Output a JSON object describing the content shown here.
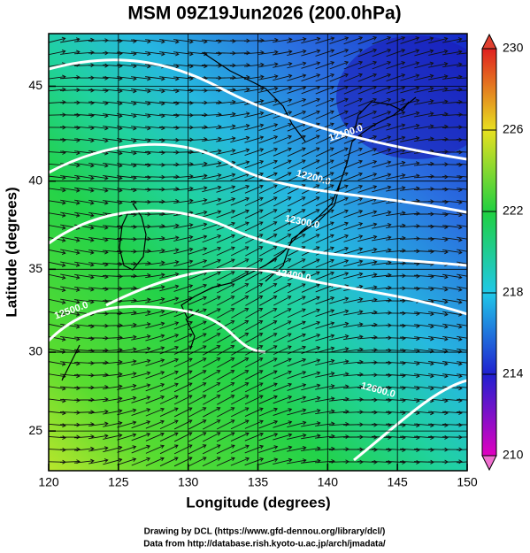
{
  "chart_data": {
    "type": "map",
    "projection": "mercator",
    "title": "MSM 09Z19Jun2026 (200.0hPa)",
    "x_label": "Longitude (degrees)",
    "y_label": "Latitude  (degrees)",
    "xlim": [
      120,
      150
    ],
    "ylim": [
      22.4,
      47.6
    ],
    "xticks": [
      120,
      125,
      130,
      135,
      140,
      145,
      150
    ],
    "yticks": [
      25,
      30,
      35,
      40,
      45
    ],
    "grid": true,
    "contour_levels": [
      12100,
      12200,
      12300,
      12400,
      12500,
      12600
    ],
    "contour_labels": [
      "12100.0",
      "12200.0",
      "12300.0",
      "12400.0",
      "12500.0",
      "12600.0"
    ],
    "colorbar": {
      "lim": [
        210,
        230
      ],
      "ticks": [
        210,
        214,
        218,
        222,
        226,
        230
      ]
    }
  },
  "footer": [
    "Drawing by DCL (https://www.gfd-dennou.org/library/dcl/)",
    "Data from http://database.rish.kyoto-u.ac.jp/arch/jmadata/"
  ]
}
